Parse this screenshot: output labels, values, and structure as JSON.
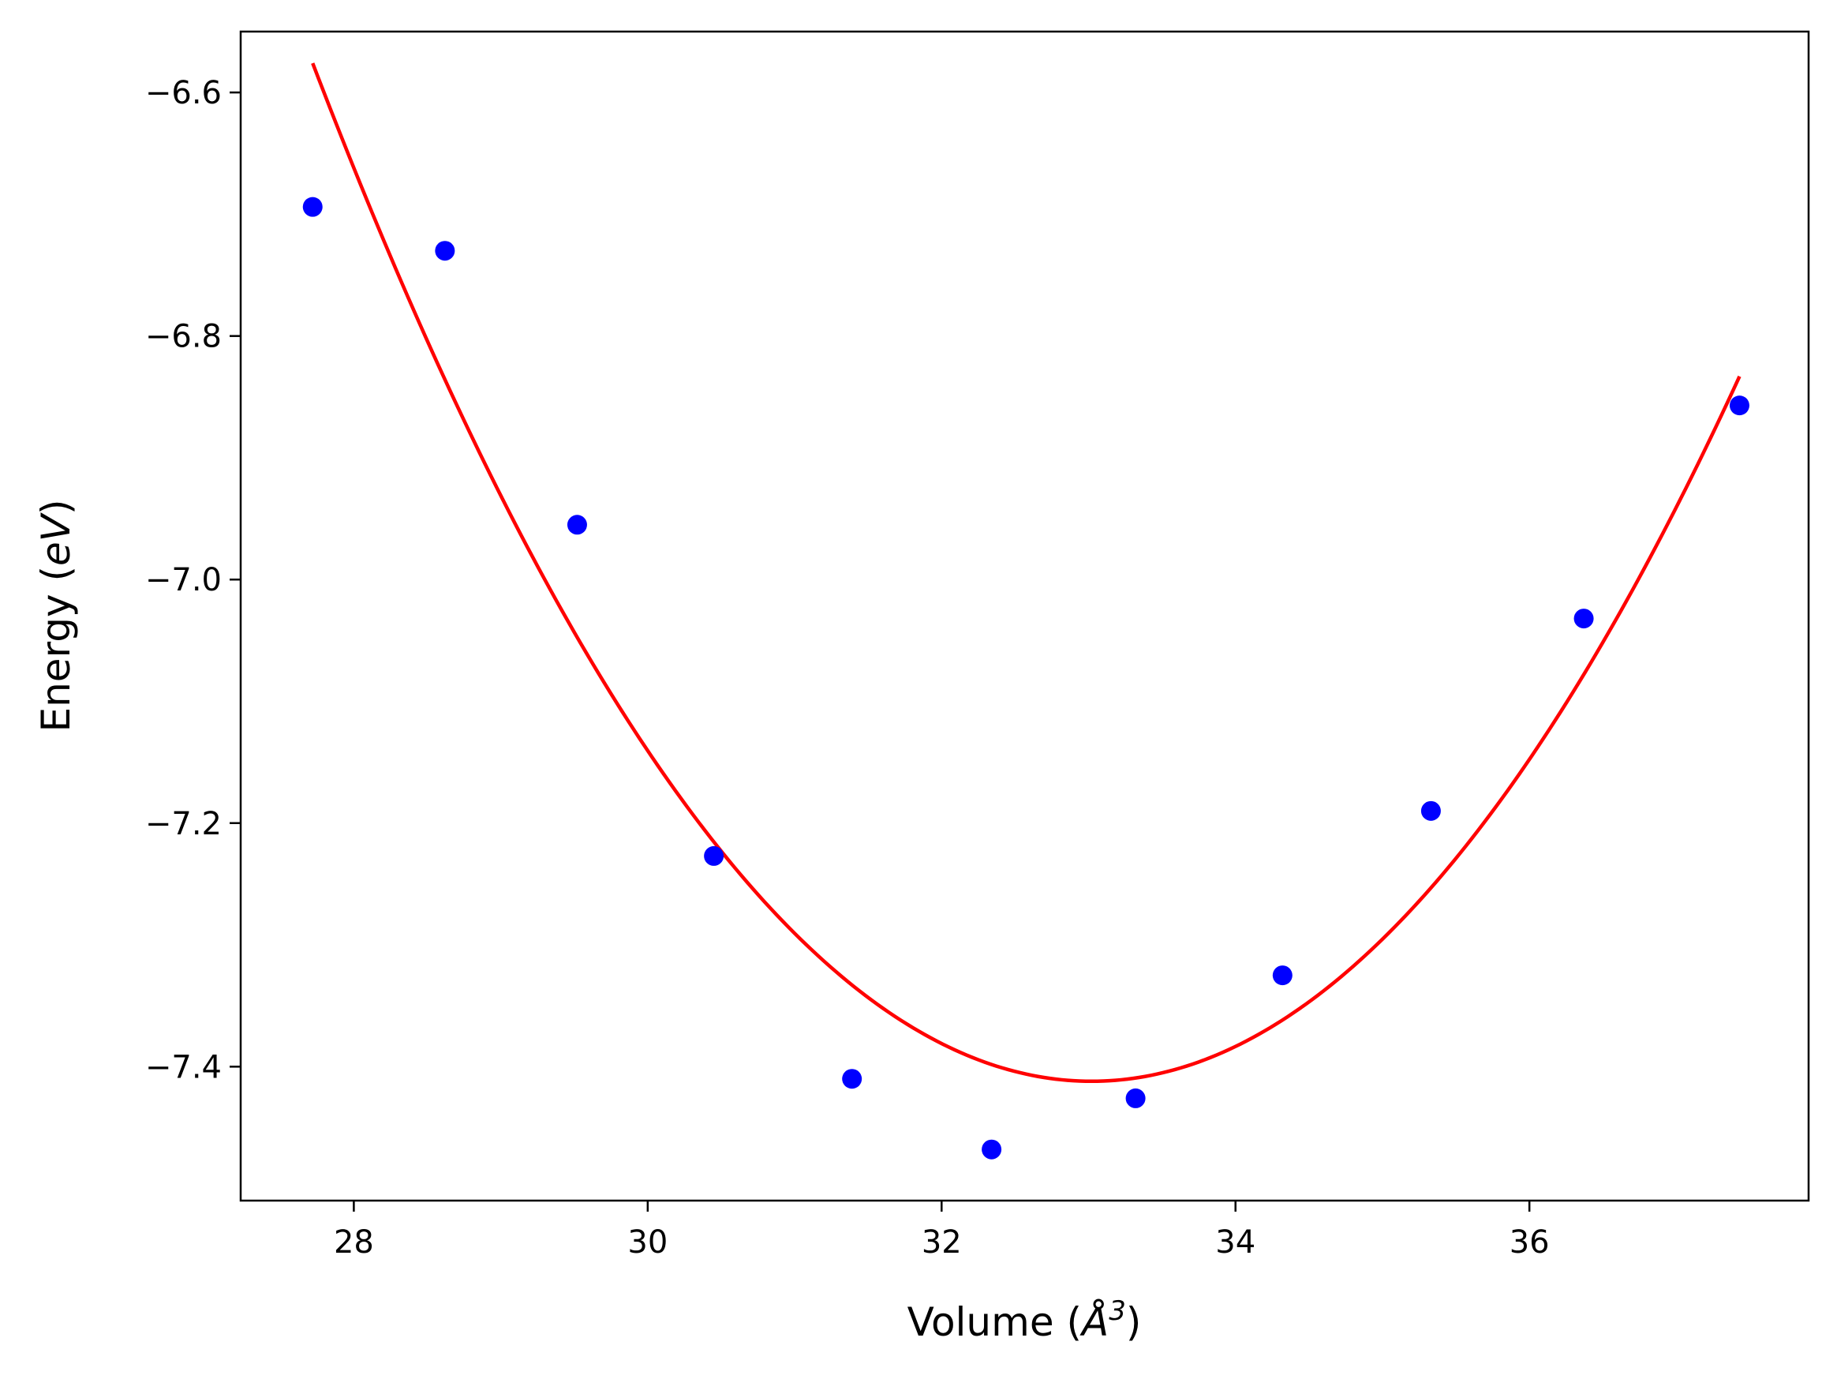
{
  "chart_data": {
    "type": "scatter",
    "title": "",
    "xlabel_text": "Volume (",
    "xlabel_unit": "Å",
    "xlabel_sup": "3",
    "xlabel_close": ")",
    "ylabel_text": "Energy (",
    "ylabel_unit": "eV",
    "ylabel_close": ")",
    "xlim": [
      27.23,
      37.9
    ],
    "ylim": [
      -7.51,
      -6.55
    ],
    "xticks": [
      28,
      30,
      32,
      34,
      36
    ],
    "xtick_labels": [
      "28",
      "30",
      "32",
      "34",
      "36"
    ],
    "yticks": [
      -6.6,
      -6.8,
      -7.0,
      -7.2,
      -7.4
    ],
    "ytick_labels": [
      "−6.6",
      "−6.8",
      "−7.0",
      "−7.2",
      "−7.4"
    ],
    "grid": false,
    "series": [
      {
        "kind": "points",
        "color": "#0000ff",
        "x": [
          27.72,
          28.62,
          29.52,
          30.45,
          31.39,
          32.34,
          33.32,
          34.32,
          35.33,
          36.37,
          37.43
        ],
        "y": [
          -6.694,
          -6.73,
          -6.955,
          -7.227,
          -7.41,
          -7.468,
          -7.426,
          -7.325,
          -7.19,
          -7.032,
          -6.857
        ]
      },
      {
        "kind": "fit-curve",
        "color": "#ff0000",
        "vertex_x": 33.02,
        "vertex_y": -7.412,
        "x_range": [
          27.72,
          37.43
        ]
      }
    ]
  }
}
